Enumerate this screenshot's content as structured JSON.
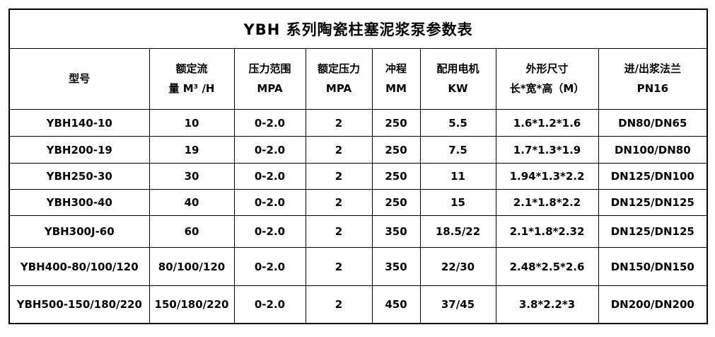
{
  "page": {
    "background": "#ffffff",
    "border_color": "#000000",
    "text_color": "#000000"
  },
  "table": {
    "title": "YBH 系列陶瓷柱塞泥浆泵参数表",
    "columns": [
      {
        "id": "model",
        "lines": [
          "型号"
        ]
      },
      {
        "id": "rated-flow",
        "lines": [
          "额定流",
          "量 M³ /H"
        ]
      },
      {
        "id": "pressure-range",
        "lines": [
          "压力范围",
          "MPA"
        ]
      },
      {
        "id": "rated-pressure",
        "lines": [
          "额定压力",
          "MPA"
        ]
      },
      {
        "id": "stroke",
        "lines": [
          "冲程",
          "MM"
        ]
      },
      {
        "id": "motor",
        "lines": [
          "配用电机",
          "KW"
        ]
      },
      {
        "id": "dimensions",
        "lines": [
          "外形尺寸",
          "长*宽*高（M）"
        ]
      },
      {
        "id": "flange",
        "lines": [
          "进/出浆法兰",
          "PN16"
        ]
      }
    ],
    "rows": [
      [
        "YBH140-10",
        "10",
        "0-2.0",
        "2",
        "250",
        "5.5",
        "1.6*1.2*1.6",
        "DN80/DN65"
      ],
      [
        "YBH200-19",
        "19",
        "0-2.0",
        "2",
        "250",
        "7.5",
        "1.7*1.3*1.9",
        "DN100/DN80"
      ],
      [
        "YBH250-30",
        "30",
        "0-2.0",
        "2",
        "250",
        "11",
        "1.94*1.3*2.2",
        "DN125/DN100"
      ],
      [
        "YBH300-40",
        "40",
        "0-2.0",
        "2",
        "250",
        "15",
        "2.1*1.8*2.2",
        "DN125/DN125"
      ],
      [
        "YBH300J-60",
        "60",
        "0-2.0",
        "2",
        "350",
        "18.5/22",
        "2.1*1.8*2.32",
        "DN125/DN125"
      ],
      [
        "YBH400-80/100/120",
        "80/100/120",
        "0-2.0",
        "2",
        "350",
        "22/30",
        "2.48*2.5*2.6",
        "DN150/DN150"
      ],
      [
        "YBH500-150/180/220",
        "150/180/220",
        "0-2.0",
        "2",
        "450",
        "37/45",
        "3.8*2.2*3",
        "DN200/DN200"
      ]
    ]
  }
}
